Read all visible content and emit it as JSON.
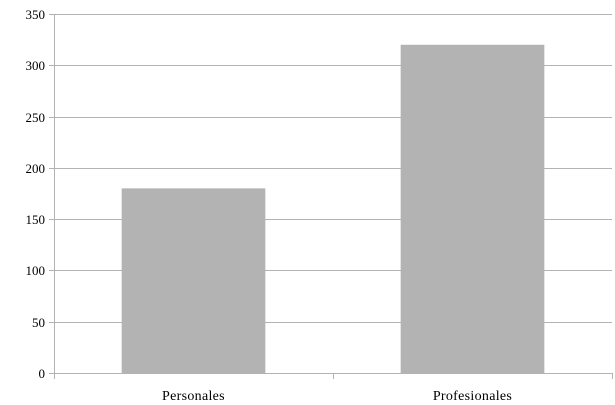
{
  "chart_data": {
    "type": "bar",
    "title": "",
    "xlabel": "",
    "ylabel": "",
    "categories": [
      "Personales",
      "Profesionales"
    ],
    "values": [
      180,
      320
    ],
    "ylim": [
      0,
      350
    ],
    "yticks": [
      0,
      50,
      100,
      150,
      200,
      250,
      300,
      350
    ],
    "grid": true,
    "legend": "none",
    "bar_color": "#b3b3b3",
    "grid_color": "#b3b3b3",
    "axis_color": "#b3b3b3"
  }
}
